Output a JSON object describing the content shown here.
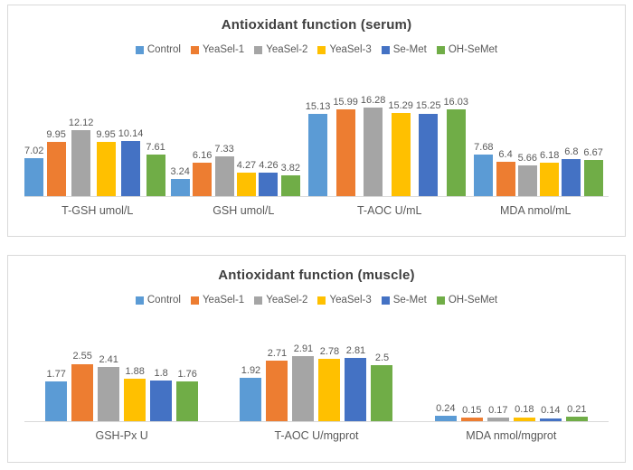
{
  "colors": {
    "background": "#ffffff",
    "panel_border": "#d9d9d9",
    "axis_line": "#d9d9d9",
    "title_text": "#3f3f3f",
    "label_text": "#595959"
  },
  "chart_data": [
    {
      "type": "bar",
      "title": "Antioxidant function (serum)",
      "categories": [
        "T-GSH umol/L",
        "GSH umol/L",
        "T-AOC U/mL",
        "MDA nmol/mL"
      ],
      "series": [
        {
          "name": "Control",
          "color": "#5B9BD5",
          "values": [
            7.02,
            3.24,
            15.13,
            7.68
          ]
        },
        {
          "name": "YeaSel-1",
          "color": "#ED7D31",
          "values": [
            9.95,
            6.16,
            15.99,
            6.4
          ]
        },
        {
          "name": "YeaSel-2",
          "color": "#A5A5A5",
          "values": [
            12.12,
            7.33,
            16.28,
            5.66
          ]
        },
        {
          "name": "YeaSel-3",
          "color": "#FFC000",
          "values": [
            9.95,
            4.27,
            15.29,
            6.18
          ]
        },
        {
          "name": "Se-Met",
          "color": "#4472C4",
          "values": [
            10.14,
            4.26,
            15.25,
            6.8
          ]
        },
        {
          "name": "OH-SeMet",
          "color": "#70AD47",
          "values": [
            7.61,
            3.82,
            16.03,
            6.67
          ]
        }
      ],
      "ylim": [
        0,
        20
      ],
      "grid": false,
      "legend_position": "top",
      "data_labels": true
    },
    {
      "type": "bar",
      "title": "Antioxidant function (muscle)",
      "categories": [
        "GSH-Px U",
        "T-AOC U/mgprot",
        "MDA nmol/mgprot"
      ],
      "series": [
        {
          "name": "Control",
          "color": "#5B9BD5",
          "values": [
            1.77,
            1.92,
            0.24
          ]
        },
        {
          "name": "YeaSel-1",
          "color": "#ED7D31",
          "values": [
            2.55,
            2.71,
            0.15
          ]
        },
        {
          "name": "YeaSel-2",
          "color": "#A5A5A5",
          "values": [
            2.41,
            2.91,
            0.17
          ]
        },
        {
          "name": "YeaSel-3",
          "color": "#FFC000",
          "values": [
            1.88,
            2.78,
            0.18
          ]
        },
        {
          "name": "Se-Met",
          "color": "#4472C4",
          "values": [
            1.8,
            2.81,
            0.14
          ]
        },
        {
          "name": "OH-SeMet",
          "color": "#70AD47",
          "values": [
            1.76,
            2.5,
            0.21
          ]
        }
      ],
      "ylim": [
        0,
        4.5
      ],
      "grid": false,
      "legend_position": "top",
      "data_labels": true
    }
  ]
}
